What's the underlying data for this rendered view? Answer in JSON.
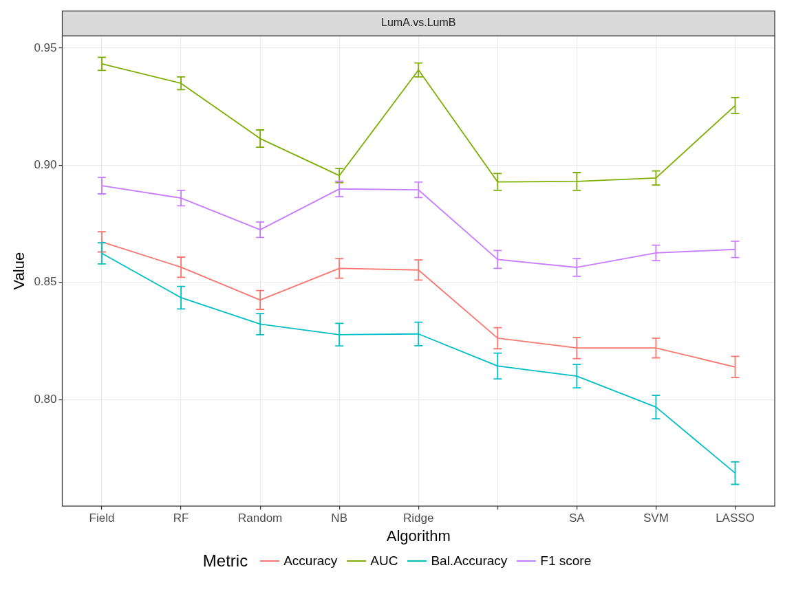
{
  "chart_data": {
    "type": "line",
    "title": "LumA.vs.LumB",
    "xlabel": "Algorithm",
    "ylabel": "Value",
    "legend_title": "Metric",
    "categories": [
      "Field",
      "RF",
      "Random",
      "NB",
      "Ridge",
      null,
      "SA",
      "SVM",
      "LASSO"
    ],
    "series": [
      {
        "name": "Accuracy",
        "color": "#f8766d",
        "values": [
          0.8673,
          0.8565,
          0.8425,
          0.856,
          0.8553,
          0.8262,
          0.822,
          0.822,
          0.8139
        ],
        "errors": [
          0.0043,
          0.0043,
          0.004,
          0.0042,
          0.0043,
          0.0045,
          0.0045,
          0.0042,
          0.0045
        ]
      },
      {
        "name": "AUC",
        "color": "#7cae00",
        "values": [
          0.9433,
          0.935,
          0.9114,
          0.8956,
          0.9407,
          0.8929,
          0.8931,
          0.8946,
          0.9255
        ],
        "errors": [
          0.0028,
          0.0027,
          0.0037,
          0.003,
          0.003,
          0.0036,
          0.0038,
          0.003,
          0.0034
        ]
      },
      {
        "name": "Bal.Accuracy",
        "color": "#00bfc4",
        "values": [
          0.8624,
          0.8435,
          0.8322,
          0.8277,
          0.828,
          0.8143,
          0.81,
          0.7968,
          0.7686
        ],
        "errors": [
          0.0045,
          0.0048,
          0.0045,
          0.0048,
          0.005,
          0.0055,
          0.005,
          0.005,
          0.0048
        ]
      },
      {
        "name": "F1 score",
        "color": "#c77cff",
        "values": [
          0.8913,
          0.886,
          0.8725,
          0.8899,
          0.8895,
          0.8598,
          0.8564,
          0.8626,
          0.8641
        ],
        "errors": [
          0.0035,
          0.0033,
          0.0033,
          0.0033,
          0.0033,
          0.0038,
          0.0038,
          0.0033,
          0.0035
        ]
      }
    ],
    "ylim": [
      0.7545,
      0.9553
    ],
    "yticks": [
      {
        "value": 0.8,
        "label": "0.80"
      },
      0.85,
      {
        "value": 0.9,
        "label": "0.90"
      },
      0.95
    ],
    "grid": true,
    "legend": "bottom",
    "marker": "none",
    "line_style": "solid"
  }
}
